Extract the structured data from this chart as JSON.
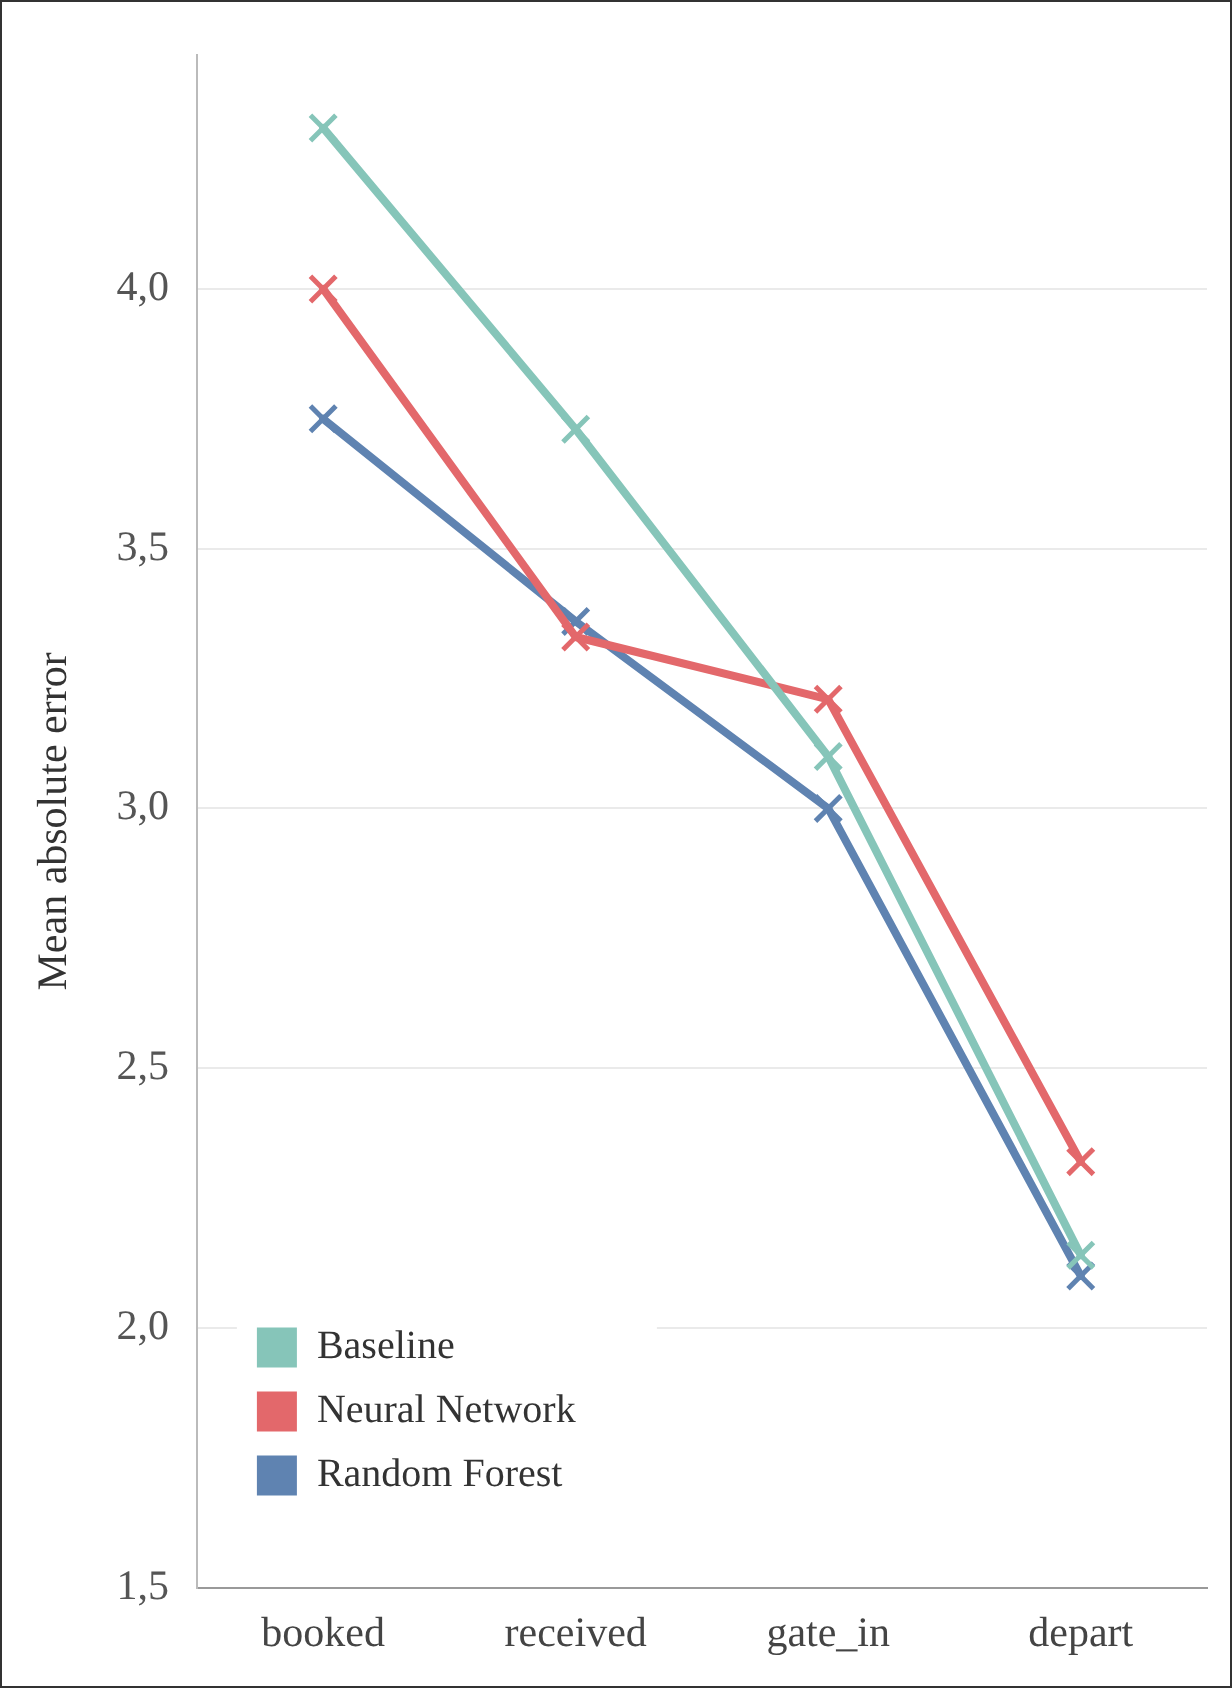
{
  "chart_data": {
    "type": "line",
    "ylabel": "Mean absolute error",
    "categories": [
      "booked",
      "received",
      "gate_in",
      "depart"
    ],
    "series": [
      {
        "name": "Baseline",
        "color": "#86c5b9",
        "values": [
          4.31,
          3.73,
          3.1,
          2.14
        ]
      },
      {
        "name": "Neural Network",
        "color": "#e3686b",
        "values": [
          4.0,
          3.33,
          3.21,
          2.32
        ]
      },
      {
        "name": "Random Forest",
        "color": "#5f83b1",
        "values": [
          3.75,
          3.36,
          3.0,
          2.1
        ]
      }
    ],
    "ylim": [
      1.5,
      4.45
    ],
    "yticks": [
      {
        "value": 1.5,
        "label": "1,5"
      },
      {
        "value": 2,
        "label": "2,0"
      },
      {
        "value": 2.5,
        "label": "2,5"
      },
      {
        "value": 3,
        "label": "3,0"
      },
      {
        "value": 3.5,
        "label": "3,5"
      },
      {
        "value": 4,
        "label": "4,0"
      }
    ],
    "grid": "y",
    "legend": "bottom left",
    "marker": "cross",
    "line_style": "solid"
  }
}
